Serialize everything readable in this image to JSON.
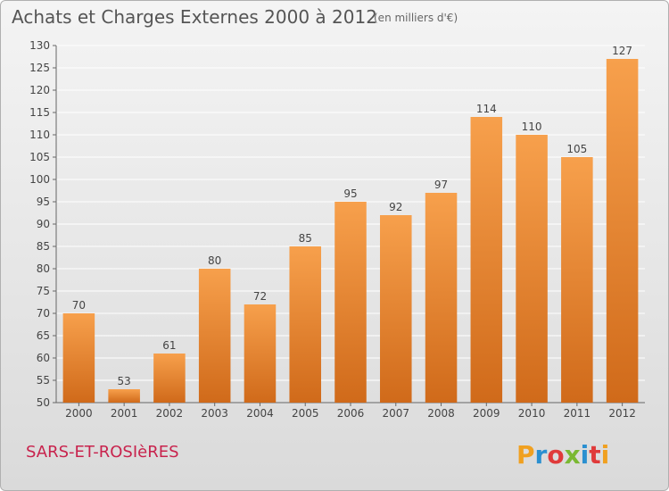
{
  "header": {
    "title": "Achats et Charges Externes 2000 à 2012",
    "subtitle": "(en milliers d'€)"
  },
  "footer": {
    "commune": "SARS-ET-ROSIèRES",
    "logo_text": "Proxiti",
    "logo_colors": [
      "#f0a020",
      "#2a8fd0",
      "#e03a3a",
      "#7ab832",
      "#2a8fd0",
      "#e03a3a",
      "#f0a020"
    ]
  },
  "chart_data": {
    "type": "bar",
    "title": "Achats et Charges Externes 2000 à 2012",
    "subtitle": "(en milliers d'€)",
    "categories": [
      "2000",
      "2001",
      "2002",
      "2003",
      "2004",
      "2005",
      "2006",
      "2007",
      "2008",
      "2009",
      "2010",
      "2011",
      "2012"
    ],
    "values": [
      70,
      53,
      61,
      80,
      72,
      85,
      95,
      92,
      97,
      114,
      110,
      105,
      127
    ],
    "ylim": [
      50,
      130
    ],
    "yticks": [
      50,
      55,
      60,
      65,
      70,
      75,
      80,
      85,
      90,
      95,
      100,
      105,
      110,
      115,
      120,
      125,
      130
    ],
    "grid": true,
    "bar_color_top": "#f7a04c",
    "bar_color_bottom": "#d06a1a"
  }
}
